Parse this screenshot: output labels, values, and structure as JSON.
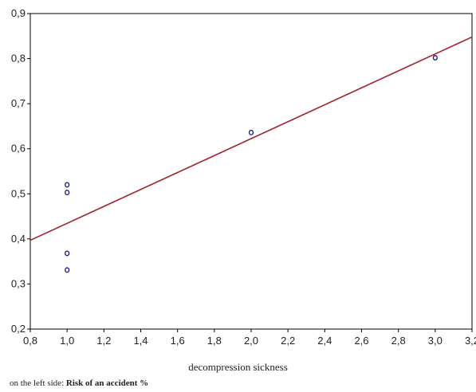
{
  "chart_data": {
    "type": "scatter",
    "title": "",
    "xlabel": "decompression sickness",
    "ylabel": "",
    "xlim": [
      0.8,
      3.2
    ],
    "ylim": [
      0.2,
      0.9
    ],
    "x_ticks": [
      "0,8",
      "1,0",
      "1,2",
      "1,4",
      "1,6",
      "1,8",
      "2,0",
      "2,2",
      "2,4",
      "2,6",
      "2,8",
      "3,0",
      "3,2"
    ],
    "y_ticks": [
      "0,2",
      "0,3",
      "0,4",
      "0,5",
      "0,6",
      "0,7",
      "0,8",
      "0,9"
    ],
    "x_tick_values": [
      0.8,
      1.0,
      1.2,
      1.4,
      1.6,
      1.8,
      2.0,
      2.2,
      2.4,
      2.6,
      2.8,
      3.0,
      3.2
    ],
    "y_tick_values": [
      0.2,
      0.3,
      0.4,
      0.5,
      0.6,
      0.7,
      0.8,
      0.9
    ],
    "grid": false,
    "points": [
      {
        "x": 1.0,
        "y": 0.52
      },
      {
        "x": 1.0,
        "y": 0.503
      },
      {
        "x": 1.0,
        "y": 0.368
      },
      {
        "x": 1.0,
        "y": 0.331
      },
      {
        "x": 2.0,
        "y": 0.636
      },
      {
        "x": 3.0,
        "y": 0.802
      }
    ],
    "fit_line": {
      "x": [
        0.8,
        3.2
      ],
      "y": [
        0.397,
        0.848
      ]
    },
    "colors": {
      "points": "#1a1a8c",
      "line": "#a0202a",
      "axes": "#000000"
    }
  },
  "footnote": {
    "prefix": "on the left side: ",
    "bold": "Risk of an accident %"
  }
}
